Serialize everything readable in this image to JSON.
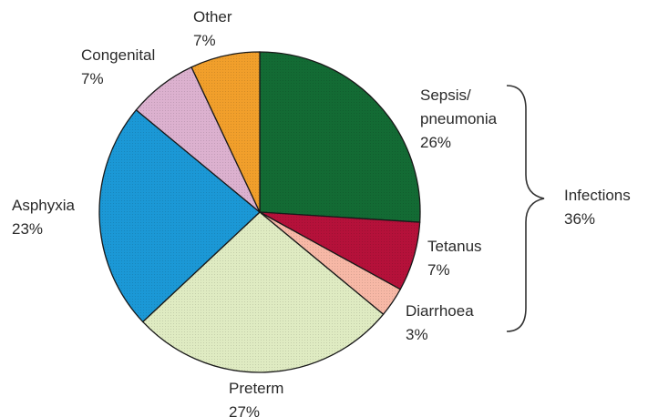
{
  "chart_data": {
    "type": "pie",
    "slices": [
      {
        "label_lines": [
          "Sepsis/",
          "pneumonia"
        ],
        "value_text": "26%",
        "value": 26,
        "color": "#136b34"
      },
      {
        "label_lines": [
          "Tetanus"
        ],
        "value_text": "7%",
        "value": 7,
        "color": "#b5113a"
      },
      {
        "label_lines": [
          "Diarrhoea"
        ],
        "value_text": "3%",
        "value": 3,
        "color": "#f7b8a6"
      },
      {
        "label_lines": [
          "Preterm"
        ],
        "value_text": "27%",
        "value": 27,
        "color": "#dfebc2"
      },
      {
        "label_lines": [
          "Asphyxia"
        ],
        "value_text": "23%",
        "value": 23,
        "color": "#1b98d6"
      },
      {
        "label_lines": [
          "Congenital"
        ],
        "value_text": "7%",
        "value": 7,
        "color": "#dcb1cf"
      },
      {
        "label_lines": [
          "Other"
        ],
        "value_text": "7%",
        "value": 7,
        "color": "#f19f2b"
      }
    ],
    "group": {
      "label": "Infections",
      "value_text": "36%",
      "value": 36,
      "members": [
        "Sepsis/pneumonia",
        "Tetanus",
        "Diarrhoea"
      ]
    }
  }
}
